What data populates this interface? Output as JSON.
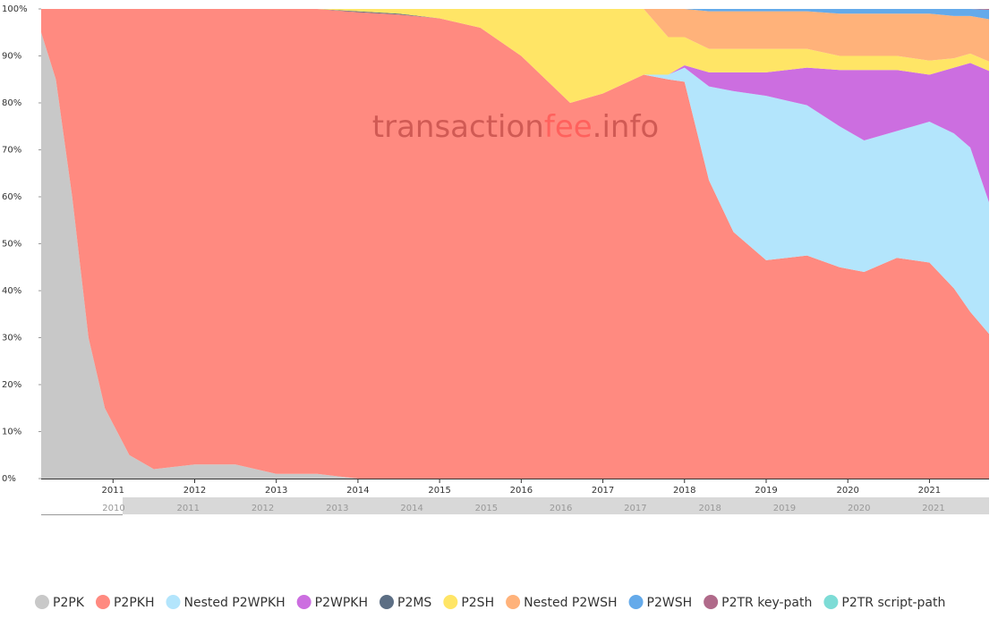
{
  "chart_data": {
    "type": "stacked-area",
    "watermark": [
      "transaction",
      "fee",
      ".info"
    ],
    "x": [
      2010.12,
      2010.3,
      2010.5,
      2010.7,
      2010.9,
      2011.2,
      2011.5,
      2012.0,
      2012.5,
      2013.0,
      2013.5,
      2014.0,
      2014.5,
      2015.0,
      2015.5,
      2016.0,
      2016.3,
      2016.6,
      2017.0,
      2017.5,
      2017.8,
      2018.0,
      2018.3,
      2018.6,
      2019.0,
      2019.5,
      2019.9,
      2020.2,
      2020.6,
      2021.0,
      2021.3,
      2021.5,
      2021.73
    ],
    "xlim": [
      2010.12,
      2021.73
    ],
    "xticks": [
      2011,
      2012,
      2013,
      2014,
      2015,
      2016,
      2017,
      2018,
      2019,
      2020,
      2021
    ],
    "ylim": [
      0,
      100
    ],
    "yticks": [
      {
        "value": 0,
        "label": "0%"
      },
      {
        "value": 10,
        "label": "10%"
      },
      {
        "value": 20,
        "label": "20%"
      },
      {
        "value": 30,
        "label": "30%"
      },
      {
        "value": 40,
        "label": "40%"
      },
      {
        "value": 50,
        "label": "50%"
      },
      {
        "value": 60,
        "label": "60%"
      },
      {
        "value": 70,
        "label": "70%"
      },
      {
        "value": 80,
        "label": "80%"
      },
      {
        "value": 90,
        "label": "90%"
      },
      {
        "value": 100,
        "label": "100%"
      }
    ],
    "navigator_labels": [
      2010,
      2011,
      2012,
      2013,
      2014,
      2015,
      2016,
      2017,
      2018,
      2019,
      2020,
      2021
    ],
    "series": [
      {
        "name": "P2PK",
        "color": "#c8c8c8",
        "values": [
          95,
          85,
          60,
          30,
          15,
          5,
          2,
          3,
          3,
          1,
          1,
          0,
          0,
          0,
          0,
          0,
          0,
          0,
          0,
          0,
          0,
          0,
          0,
          0,
          0,
          0,
          0,
          0,
          0,
          0,
          0,
          0,
          0
        ]
      },
      {
        "name": "P2PKH",
        "color": "#ff8a80",
        "values": [
          5,
          15,
          40,
          70,
          85,
          95,
          98,
          97,
          97,
          99,
          99,
          99.3,
          98.8,
          98,
          96,
          90,
          85,
          80,
          82,
          86,
          85,
          84.5,
          63.5,
          52.5,
          46.5,
          47.5,
          45,
          44,
          47,
          46,
          40.5,
          35.5,
          30.8
        ]
      },
      {
        "name": "Nested P2WPKH",
        "color": "#b3e5fc",
        "values": [
          0,
          0,
          0,
          0,
          0,
          0,
          0,
          0,
          0,
          0,
          0,
          0,
          0,
          0,
          0,
          0,
          0,
          0,
          0,
          0,
          1,
          3,
          20,
          30,
          35,
          32,
          30,
          28,
          27,
          30,
          33,
          35,
          28
        ]
      },
      {
        "name": "P2WPKH",
        "color": "#cc6ee0",
        "values": [
          0,
          0,
          0,
          0,
          0,
          0,
          0,
          0,
          0,
          0,
          0,
          0,
          0,
          0,
          0,
          0,
          0,
          0,
          0,
          0,
          0,
          0.5,
          3,
          4,
          5,
          8,
          12,
          15,
          13,
          10,
          14,
          18,
          28
        ]
      },
      {
        "name": "P2MS",
        "color": "#5c6e84",
        "values": [
          0,
          0,
          0,
          0,
          0,
          0,
          0,
          0,
          0,
          0,
          0,
          0.2,
          0.2,
          0,
          0,
          0,
          0,
          0,
          0,
          0,
          0,
          0,
          0,
          0,
          0,
          0,
          0,
          0,
          0,
          0,
          0,
          0,
          0
        ]
      },
      {
        "name": "P2SH",
        "color": "#ffe566",
        "values": [
          0,
          0,
          0,
          0,
          0,
          0,
          0,
          0,
          0,
          0,
          0,
          0.5,
          1,
          2,
          4,
          10,
          15,
          20,
          18,
          14,
          8,
          6,
          5,
          5,
          5,
          4,
          3,
          3,
          3,
          3,
          2,
          2,
          2
        ]
      },
      {
        "name": "Nested P2WSH",
        "color": "#ffb27a",
        "values": [
          0,
          0,
          0,
          0,
          0,
          0,
          0,
          0,
          0,
          0,
          0,
          0,
          0,
          0,
          0,
          0,
          0,
          0,
          0,
          0,
          6,
          6,
          8,
          8,
          8,
          8,
          9,
          9,
          9,
          10,
          9,
          8,
          9
        ]
      },
      {
        "name": "P2WSH",
        "color": "#64aaea",
        "values": [
          0,
          0,
          0,
          0,
          0,
          0,
          0,
          0,
          0,
          0,
          0,
          0,
          0,
          0,
          0,
          0,
          0,
          0,
          0,
          0,
          0,
          0,
          0.5,
          0.5,
          0.5,
          0.5,
          1,
          1,
          1,
          1,
          1.5,
          1.5,
          2
        ]
      },
      {
        "name": "P2TR key-path",
        "color": "#b06a8a",
        "values": [
          0,
          0,
          0,
          0,
          0,
          0,
          0,
          0,
          0,
          0,
          0,
          0,
          0,
          0,
          0,
          0,
          0,
          0,
          0,
          0,
          0,
          0,
          0,
          0,
          0,
          0,
          0,
          0,
          0,
          0,
          0,
          0,
          0.2
        ]
      },
      {
        "name": "P2TR script-path",
        "color": "#7ddcd6",
        "values": [
          0,
          0,
          0,
          0,
          0,
          0,
          0,
          0,
          0,
          0,
          0,
          0,
          0,
          0,
          0,
          0,
          0,
          0,
          0,
          0,
          0,
          0,
          0,
          0,
          0,
          0,
          0,
          0,
          0,
          0,
          0,
          0,
          0
        ]
      }
    ]
  }
}
